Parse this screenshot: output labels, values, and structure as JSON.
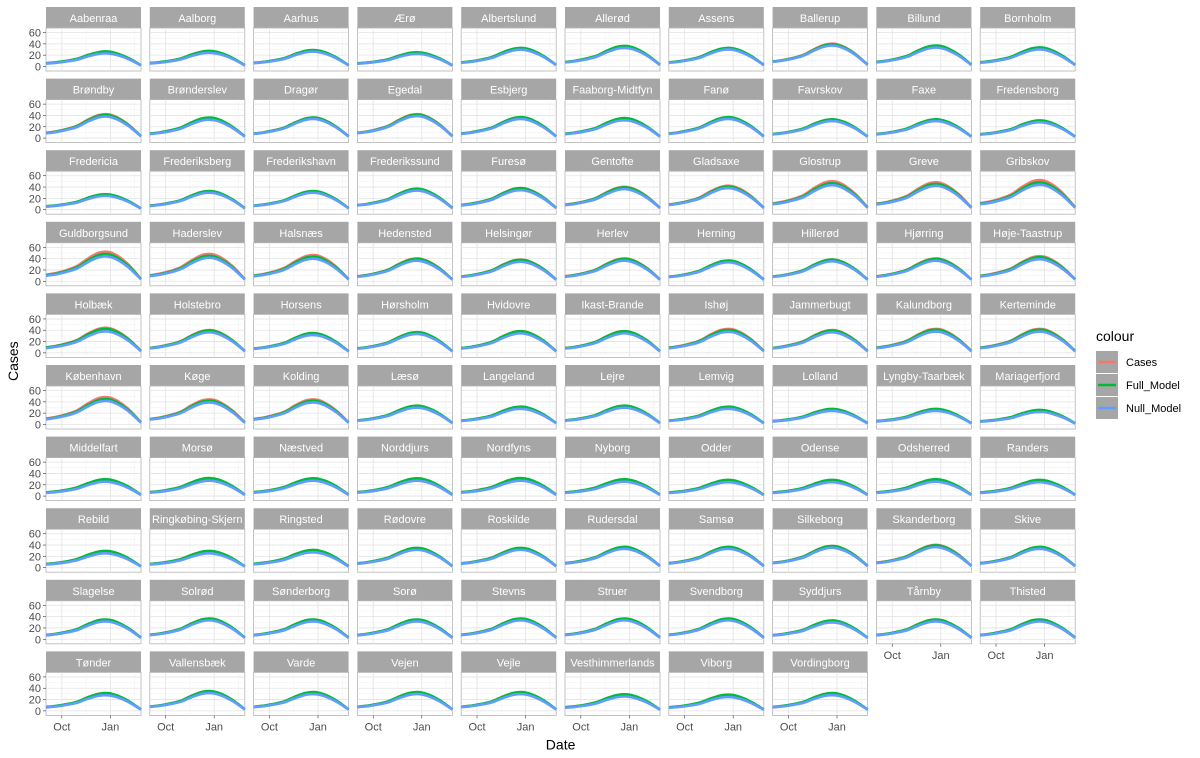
{
  "chart_data": {
    "type": "line",
    "facet_wrap": {
      "ncol": 10
    },
    "xlabel": "Date",
    "ylabel": "Cases",
    "x_ticks": [
      "Oct",
      "Jan"
    ],
    "x_range": [
      "2020-09-01",
      "2021-02-28"
    ],
    "x_tick_dates": [
      "2020-10-01",
      "2021-01-01"
    ],
    "ylim": [
      -8,
      68
    ],
    "y_ticks": [
      0,
      20,
      40,
      60
    ],
    "grid": true,
    "legend": {
      "title": "colour",
      "position": "right",
      "entries": [
        {
          "name": "Cases",
          "color": "#F8766D"
        },
        {
          "name": "Full_Model",
          "color": "#00BA38"
        },
        {
          "name": "Null_Model",
          "color": "#619CFF"
        }
      ]
    },
    "curve_x": [
      "2020-09-01",
      "2020-09-20",
      "2020-10-10",
      "2020-10-30",
      "2020-11-20",
      "2020-12-10",
      "2020-12-28",
      "2021-01-15",
      "2021-02-05",
      "2021-02-28"
    ],
    "shape": {
      "start": 0.22,
      "values": [
        0.22,
        0.28,
        0.38,
        0.52,
        0.78,
        0.97,
        1.0,
        0.86,
        0.55,
        0.08
      ]
    },
    "facets": [
      {
        "name": "Aabenraa",
        "peak": 25,
        "full": 1.05,
        "null": 0.92
      },
      {
        "name": "Aalborg",
        "peak": 26,
        "full": 1.05,
        "null": 0.92
      },
      {
        "name": "Aarhus",
        "peak": 28,
        "full": 1.03,
        "null": 0.93
      },
      {
        "name": "Ærø",
        "peak": 24,
        "full": 1.04,
        "null": 0.92
      },
      {
        "name": "Albertslund",
        "peak": 32,
        "full": 1.02,
        "null": 0.92
      },
      {
        "name": "Allerød",
        "peak": 35,
        "full": 1.03,
        "null": 0.93
      },
      {
        "name": "Assens",
        "peak": 32,
        "full": 1.02,
        "null": 0.93
      },
      {
        "name": "Ballerup",
        "peak": 40,
        "full": 0.97,
        "null": 0.92
      },
      {
        "name": "Billund",
        "peak": 36,
        "full": 1.02,
        "null": 0.92
      },
      {
        "name": "Bornholm",
        "peak": 32,
        "full": 1.04,
        "null": 0.93
      },
      {
        "name": "Brøndby",
        "peak": 42,
        "full": 0.97,
        "null": 0.9
      },
      {
        "name": "Brønderslev",
        "peak": 35,
        "full": 1.03,
        "null": 0.92
      },
      {
        "name": "Dragør",
        "peak": 36,
        "full": 1.0,
        "null": 0.93
      },
      {
        "name": "Egedal",
        "peak": 42,
        "full": 0.98,
        "null": 0.92
      },
      {
        "name": "Esbjerg",
        "peak": 36,
        "full": 1.02,
        "null": 0.93
      },
      {
        "name": "Faaborg-Midtfyn",
        "peak": 34,
        "full": 1.03,
        "null": 0.92
      },
      {
        "name": "Fanø",
        "peak": 36,
        "full": 1.02,
        "null": 0.93
      },
      {
        "name": "Favrskov",
        "peak": 32,
        "full": 1.03,
        "null": 0.93
      },
      {
        "name": "Faxe",
        "peak": 32,
        "full": 1.03,
        "null": 0.93
      },
      {
        "name": "Fredensborg",
        "peak": 30,
        "full": 1.03,
        "null": 0.93
      },
      {
        "name": "Fredericia",
        "peak": 26,
        "full": 1.04,
        "null": 0.93
      },
      {
        "name": "Frederiksberg",
        "peak": 32,
        "full": 1.02,
        "null": 0.93
      },
      {
        "name": "Frederikshavn",
        "peak": 32,
        "full": 1.02,
        "null": 0.93
      },
      {
        "name": "Frederikssund",
        "peak": 36,
        "full": 1.02,
        "null": 0.93
      },
      {
        "name": "Furesø",
        "peak": 38,
        "full": 0.99,
        "null": 0.9
      },
      {
        "name": "Gentofte",
        "peak": 40,
        "full": 0.98,
        "null": 0.9
      },
      {
        "name": "Gladsaxe",
        "peak": 42,
        "full": 0.96,
        "null": 0.9
      },
      {
        "name": "Glostrup",
        "peak": 50,
        "full": 0.93,
        "null": 0.86
      },
      {
        "name": "Greve",
        "peak": 48,
        "full": 0.94,
        "null": 0.87
      },
      {
        "name": "Gribskov",
        "peak": 52,
        "full": 0.92,
        "null": 0.84
      },
      {
        "name": "Guldborgsund",
        "peak": 52,
        "full": 0.92,
        "null": 0.84
      },
      {
        "name": "Haderslev",
        "peak": 48,
        "full": 0.93,
        "null": 0.86
      },
      {
        "name": "Halsnæs",
        "peak": 46,
        "full": 0.94,
        "null": 0.86
      },
      {
        "name": "Hedensted",
        "peak": 40,
        "full": 0.98,
        "null": 0.9
      },
      {
        "name": "Helsingør",
        "peak": 38,
        "full": 0.99,
        "null": 0.9
      },
      {
        "name": "Herlev",
        "peak": 40,
        "full": 0.98,
        "null": 0.9
      },
      {
        "name": "Herning",
        "peak": 36,
        "full": 1.01,
        "null": 0.92
      },
      {
        "name": "Hillerød",
        "peak": 38,
        "full": 1.0,
        "null": 0.92
      },
      {
        "name": "Hjørring",
        "peak": 40,
        "full": 0.98,
        "null": 0.9
      },
      {
        "name": "Høje-Taastrup",
        "peak": 44,
        "full": 0.96,
        "null": 0.88
      },
      {
        "name": "Holbæk",
        "peak": 44,
        "full": 0.96,
        "null": 0.86
      },
      {
        "name": "Holstebro",
        "peak": 40,
        "full": 0.98,
        "null": 0.9
      },
      {
        "name": "Horsens",
        "peak": 34,
        "full": 1.02,
        "null": 0.92
      },
      {
        "name": "Hørsholm",
        "peak": 36,
        "full": 1.01,
        "null": 0.92
      },
      {
        "name": "Hvidovre",
        "peak": 38,
        "full": 1.0,
        "null": 0.9
      },
      {
        "name": "Ikast-Brande",
        "peak": 38,
        "full": 1.0,
        "null": 0.9
      },
      {
        "name": "Ishøj",
        "peak": 42,
        "full": 0.96,
        "null": 0.88
      },
      {
        "name": "Jammerbugt",
        "peak": 40,
        "full": 0.98,
        "null": 0.9
      },
      {
        "name": "Kalundborg",
        "peak": 42,
        "full": 0.97,
        "null": 0.89
      },
      {
        "name": "Kerteminde",
        "peak": 42,
        "full": 0.97,
        "null": 0.89
      },
      {
        "name": "København",
        "peak": 48,
        "full": 0.93,
        "null": 0.86
      },
      {
        "name": "Køge",
        "peak": 44,
        "full": 0.95,
        "null": 0.88
      },
      {
        "name": "Kolding",
        "peak": 44,
        "full": 0.95,
        "null": 0.88
      },
      {
        "name": "Læsø",
        "peak": 32,
        "full": 1.03,
        "null": 0.92
      },
      {
        "name": "Langeland",
        "peak": 30,
        "full": 1.04,
        "null": 0.92
      },
      {
        "name": "Lejre",
        "peak": 32,
        "full": 1.03,
        "null": 0.92
      },
      {
        "name": "Lemvig",
        "peak": 30,
        "full": 1.04,
        "null": 0.92
      },
      {
        "name": "Lolland",
        "peak": 26,
        "full": 1.05,
        "null": 0.92
      },
      {
        "name": "Lyngby-Taarbæk",
        "peak": 26,
        "full": 1.05,
        "null": 0.92
      },
      {
        "name": "Mariagerfjord",
        "peak": 24,
        "full": 1.06,
        "null": 0.92
      },
      {
        "name": "Middelfart",
        "peak": 28,
        "full": 1.05,
        "null": 0.9
      },
      {
        "name": "Morsø",
        "peak": 30,
        "full": 1.05,
        "null": 0.9
      },
      {
        "name": "Næstved",
        "peak": 30,
        "full": 1.04,
        "null": 0.9
      },
      {
        "name": "Norddjurs",
        "peak": 30,
        "full": 1.04,
        "null": 0.9
      },
      {
        "name": "Nordfyns",
        "peak": 30,
        "full": 1.05,
        "null": 0.9
      },
      {
        "name": "Nyborg",
        "peak": 28,
        "full": 1.05,
        "null": 0.9
      },
      {
        "name": "Odder",
        "peak": 27,
        "full": 1.05,
        "null": 0.9
      },
      {
        "name": "Odense",
        "peak": 27,
        "full": 1.05,
        "null": 0.9
      },
      {
        "name": "Odsherred",
        "peak": 28,
        "full": 1.05,
        "null": 0.9
      },
      {
        "name": "Randers",
        "peak": 27,
        "full": 1.05,
        "null": 0.9
      },
      {
        "name": "Rebild",
        "peak": 28,
        "full": 1.05,
        "null": 0.9
      },
      {
        "name": "Ringkøbing-Skjern",
        "peak": 28,
        "full": 1.05,
        "null": 0.9
      },
      {
        "name": "Ringsted",
        "peak": 30,
        "full": 1.04,
        "null": 0.9
      },
      {
        "name": "Rødovre",
        "peak": 34,
        "full": 1.02,
        "null": 0.92
      },
      {
        "name": "Roskilde",
        "peak": 34,
        "full": 1.02,
        "null": 0.92
      },
      {
        "name": "Rudersdal",
        "peak": 36,
        "full": 1.01,
        "null": 0.92
      },
      {
        "name": "Samsø",
        "peak": 36,
        "full": 1.01,
        "null": 0.92
      },
      {
        "name": "Silkeborg",
        "peak": 38,
        "full": 1.0,
        "null": 0.92
      },
      {
        "name": "Skanderborg",
        "peak": 40,
        "full": 0.98,
        "null": 0.9
      },
      {
        "name": "Skive",
        "peak": 36,
        "full": 1.01,
        "null": 0.92
      },
      {
        "name": "Slagelse",
        "peak": 34,
        "full": 1.02,
        "null": 0.92
      },
      {
        "name": "Solrød",
        "peak": 36,
        "full": 1.01,
        "null": 0.92
      },
      {
        "name": "Sønderborg",
        "peak": 34,
        "full": 1.02,
        "null": 0.92
      },
      {
        "name": "Sorø",
        "peak": 34,
        "full": 1.02,
        "null": 0.92
      },
      {
        "name": "Stevns",
        "peak": 36,
        "full": 1.01,
        "null": 0.92
      },
      {
        "name": "Struer",
        "peak": 36,
        "full": 1.01,
        "null": 0.92
      },
      {
        "name": "Svendborg",
        "peak": 36,
        "full": 1.01,
        "null": 0.92
      },
      {
        "name": "Syddjurs",
        "peak": 32,
        "full": 1.03,
        "null": 0.92
      },
      {
        "name": "Tårnby",
        "peak": 34,
        "full": 1.02,
        "null": 0.92
      },
      {
        "name": "Thisted",
        "peak": 34,
        "full": 1.02,
        "null": 0.92
      },
      {
        "name": "Tønder",
        "peak": 30,
        "full": 1.04,
        "null": 0.92
      },
      {
        "name": "Vallensbæk",
        "peak": 34,
        "full": 1.02,
        "null": 0.92
      },
      {
        "name": "Varde",
        "peak": 32,
        "full": 1.03,
        "null": 0.92
      },
      {
        "name": "Vejen",
        "peak": 32,
        "full": 1.03,
        "null": 0.92
      },
      {
        "name": "Vejle",
        "peak": 32,
        "full": 1.03,
        "null": 0.92
      },
      {
        "name": "Vesthimmerlands",
        "peak": 28,
        "full": 1.04,
        "null": 0.9
      },
      {
        "name": "Viborg",
        "peak": 27,
        "full": 1.05,
        "null": 0.9
      },
      {
        "name": "Vordingborg",
        "peak": 30,
        "full": 1.04,
        "null": 0.92
      }
    ]
  }
}
